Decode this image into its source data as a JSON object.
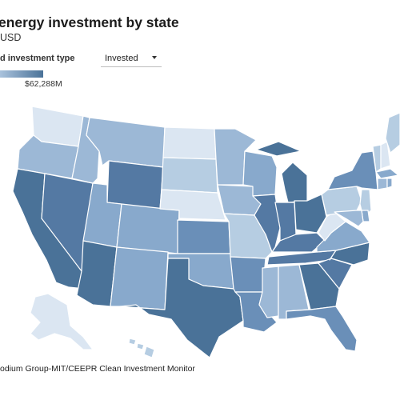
{
  "header": {
    "title": "energy investment by state",
    "subtitle": "USD"
  },
  "control": {
    "label": "d investment type",
    "selected": "Invested"
  },
  "legend": {
    "max_label": "$62,288M",
    "color_low": "#a9c2dc",
    "color_high": "#4a7298"
  },
  "source": "odium Group-MIT/CEEPR Clean Investment Monitor",
  "colors": {
    "lightest": "#dbe6f2",
    "light": "#b6cde2",
    "light_medium": "#9cb8d6",
    "medium": "#88a9cc",
    "medium_dark": "#6a8fb8",
    "dark": "#5479a3",
    "darkest": "#4a7298"
  },
  "chart_data": {
    "type": "choropleth",
    "region": "United States",
    "legend_placement": "top-left",
    "levels": {
      "WA": "lightest",
      "OR": "light_medium",
      "CA": "darkest",
      "NV": "dark",
      "ID": "light_medium",
      "MT": "light_medium",
      "WY": "dark",
      "UT": "medium",
      "AZ": "darkest",
      "CO": "medium",
      "NM": "medium",
      "ND": "lightest",
      "SD": "light",
      "NE": "lightest",
      "KS": "medium_dark",
      "OK": "medium",
      "TX": "darkest",
      "MN": "light_medium",
      "IA": "light_medium",
      "MO": "light",
      "AR": "medium_dark",
      "LA": "medium_dark",
      "WI": "medium",
      "IL": "dark",
      "MI": "darkest",
      "IN": "dark",
      "OH": "darkest",
      "KY": "dark",
      "TN": "dark",
      "MS": "light_medium",
      "AL": "light_medium",
      "GA": "darkest",
      "FL": "medium_dark",
      "SC": "dark",
      "NC": "darkest",
      "VA": "medium",
      "WV": "lightest",
      "PA": "light",
      "NY": "medium_dark",
      "VT": "light",
      "NH": "lightest",
      "ME": "light",
      "MA": "medium",
      "CT": "light_medium",
      "RI": "medium",
      "NJ": "light",
      "DE": "medium",
      "MD": "light_medium",
      "AK": "lightest",
      "HI": "light"
    }
  }
}
